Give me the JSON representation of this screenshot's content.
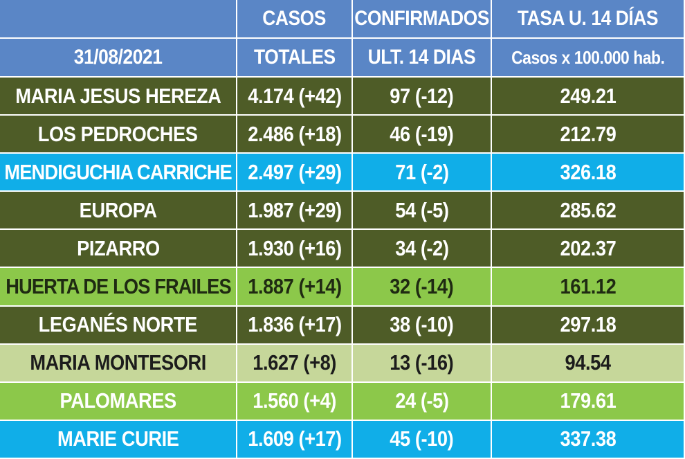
{
  "header": {
    "row1": [
      "",
      "CASOS",
      "CONFIRMADOS",
      "TASA U. 14 DÍAS"
    ],
    "row2": [
      "31/08/2021",
      "TOTALES",
      "ULT. 14 DIAS",
      "Casos x 100.000 hab."
    ]
  },
  "rows": [
    {
      "name": "MARIA JESUS HEREZA",
      "casos": "4.174 (+42)",
      "ult14": "97 (-12)",
      "tasa": "249.21"
    },
    {
      "name": "LOS PEDROCHES",
      "casos": "2.486 (+18)",
      "ult14": "46 (-19)",
      "tasa": "212.79"
    },
    {
      "name": "MENDIGUCHIA CARRICHE",
      "casos": "2.497 (+29)",
      "ult14": "71 (-2)",
      "tasa": "326.18"
    },
    {
      "name": "EUROPA",
      "casos": "1.987 (+29)",
      "ult14": "54 (-5)",
      "tasa": "285.62"
    },
    {
      "name": "PIZARRO",
      "casos": "1.930 (+16)",
      "ult14": "34 (-2)",
      "tasa": "202.37"
    },
    {
      "name": "HUERTA DE LOS FRAILES",
      "casos": "1.887 (+14)",
      "ult14": "32 (-14)",
      "tasa": "161.12"
    },
    {
      "name": "LEGANÉS NORTE",
      "casos": "1.836 (+17)",
      "ult14": "38 (-10)",
      "tasa": "297.18"
    },
    {
      "name": "MARIA MONTESORI",
      "casos": "1.627 (+8)",
      "ult14": "13 (-16)",
      "tasa": "94.54"
    },
    {
      "name": "PALOMARES",
      "casos": "1.560 (+4)",
      "ult14": "24 (-5)",
      "tasa": "179.61"
    },
    {
      "name": "MARIE CURIE",
      "casos": "1.609 (+17)",
      "ult14": "45 (-10)",
      "tasa": "337.38"
    }
  ],
  "colors": {
    "header": "#5a86c6",
    "dark_olive": "#4e5c27",
    "sky_blue": "#10aee8",
    "lime_green": "#8cc84a",
    "pale_green": "#c6d79a"
  }
}
